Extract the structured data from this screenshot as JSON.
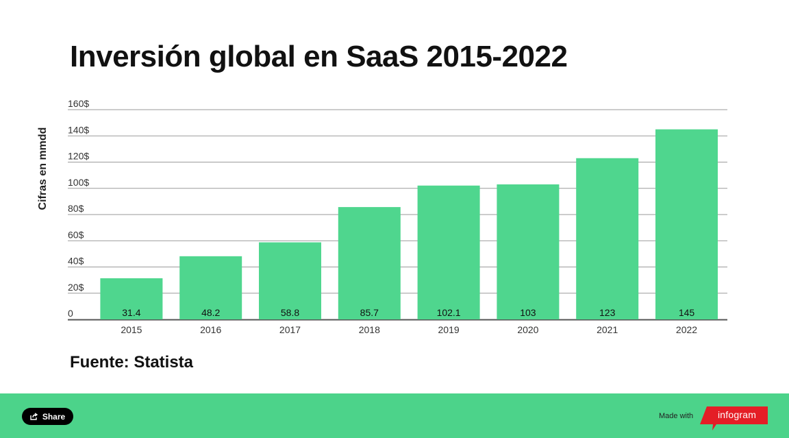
{
  "title": "Inversión global en SaaS 2015-2022",
  "source": "Fuente: Statista",
  "footer": {
    "share_label": "Share",
    "made_with": "Made with",
    "brand": "infogram"
  },
  "colors": {
    "bar": "#4fd68e",
    "footer": "#4cd38a",
    "brand": "#e41e26"
  },
  "chart_data": {
    "type": "bar",
    "categories": [
      "2015",
      "2016",
      "2017",
      "2018",
      "2019",
      "2020",
      "2021",
      "2022"
    ],
    "values": [
      31.4,
      48.2,
      58.8,
      85.7,
      102.1,
      103,
      123,
      145
    ],
    "value_labels": [
      "31.4",
      "48.2",
      "58.8",
      "85.7",
      "102.1",
      "103",
      "123",
      "145"
    ],
    "ylabel": "Cifras en mmdd",
    "xlabel": "",
    "ylim": [
      0,
      160
    ],
    "yticks": [
      0,
      20,
      40,
      60,
      80,
      100,
      120,
      140,
      160
    ],
    "ytick_labels": [
      "0",
      "20$",
      "40$",
      "60$",
      "80$",
      "100$",
      "120$",
      "140$",
      "160$"
    ],
    "grid": true,
    "legend": "none"
  }
}
